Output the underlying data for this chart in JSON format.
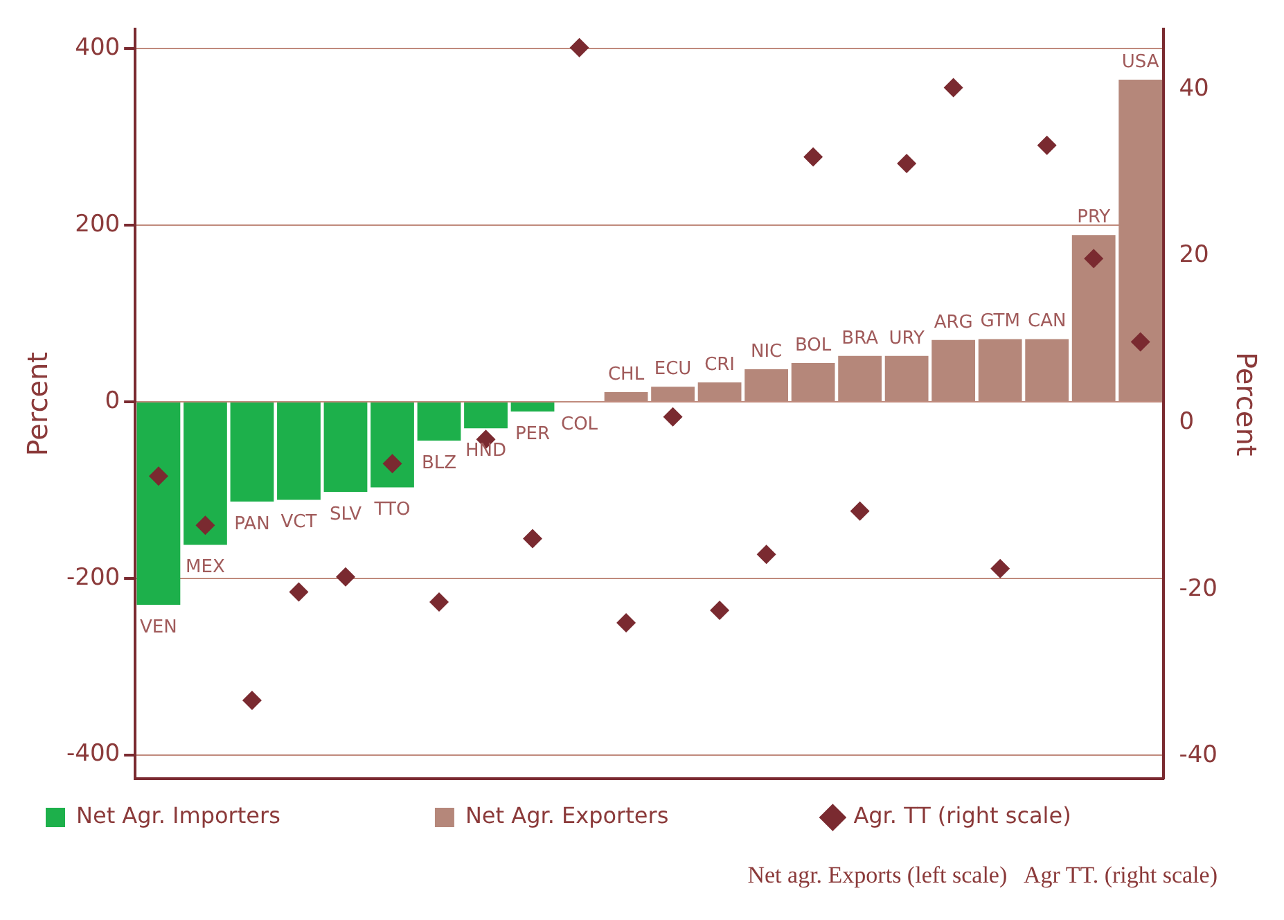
{
  "chart_data": {
    "type": "bar",
    "ylabel": "Percent",
    "y2label": "Percent",
    "categories": [
      "VEN",
      "MEX",
      "PAN",
      "VCT",
      "SLV",
      "TTO",
      "BLZ",
      "HND",
      "PER",
      "COL",
      "CHL",
      "ECU",
      "CRI",
      "NIC",
      "BOL",
      "BRA",
      "URY",
      "ARG",
      "GTM",
      "CAN",
      "PRY",
      "USA"
    ],
    "series": [
      {
        "name": "Net Agr. Importers",
        "color": "#1db04b",
        "values": [
          -230,
          -162,
          -113,
          -111,
          -102,
          -97,
          -44,
          -30,
          -11,
          null,
          null,
          null,
          null,
          null,
          null,
          null,
          null,
          null,
          null,
          null,
          null,
          null
        ]
      },
      {
        "name": "Net Agr. Exporters",
        "color": "#b5877a",
        "values": [
          null,
          null,
          null,
          null,
          null,
          null,
          null,
          null,
          null,
          null,
          11,
          17,
          22,
          37,
          44,
          52,
          52,
          70,
          71,
          71,
          189,
          365
        ]
      },
      {
        "name": "Agr. TT (right scale)",
        "type": "scatter",
        "axis": "y2",
        "color": "#7a2a30",
        "x": [
          "VEN",
          "MEX",
          "PAN",
          "VCT",
          "SLV",
          "TTO",
          "BLZ",
          "HND",
          "PER",
          "COL",
          "CHL",
          "ECU",
          "CRI",
          "NIC",
          "BOL",
          "BRA",
          "URY",
          "ARG",
          "GTM",
          "CAN",
          "PRY",
          "USA"
        ],
        "values": [
          -6.4,
          -12.3,
          -33.3,
          -20.3,
          -18.5,
          -4.9,
          -21.5,
          -2,
          -13.9,
          45,
          -24,
          0.7,
          -22.5,
          -15.8,
          31.9,
          -10.6,
          31.1,
          40.2,
          -17.5,
          33.3,
          19.7,
          9.7
        ]
      }
    ],
    "ylim": [
      -427,
      422
    ],
    "yticks": [
      -400,
      -200,
      0,
      200,
      400
    ],
    "y2lim": [
      -42.7,
      47.2
    ],
    "y2ticks": [
      -40,
      -20,
      0,
      20,
      40
    ],
    "grid": "y",
    "legend": "bottom",
    "marker": "diamond",
    "annotations": [
      "Net agr. Exports (left scale)   Agr TT. (right scale)"
    ]
  }
}
